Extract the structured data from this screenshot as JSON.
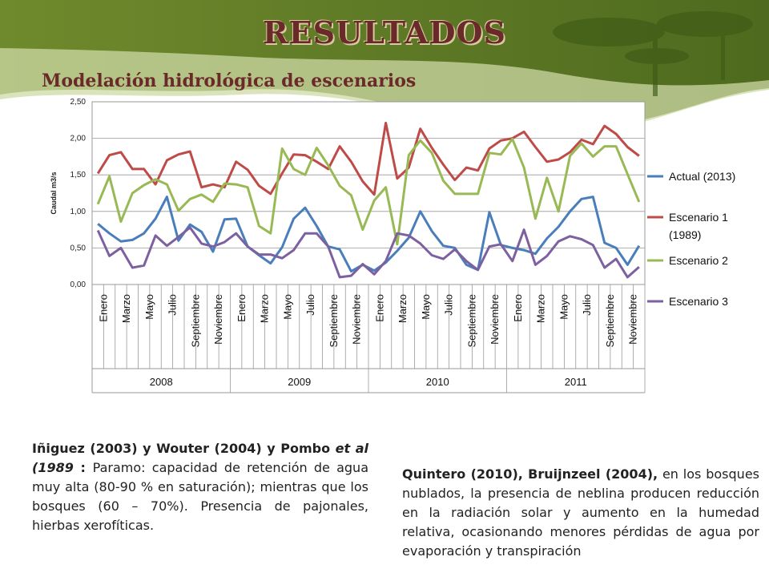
{
  "title": "RESULTADOS",
  "subtitle": "Modelación hidrológica de escenarios",
  "chart_data": {
    "type": "line",
    "ylabel": "Caudal m3/s",
    "ylim": [
      0,
      2.5
    ],
    "yticks": [
      "0,00",
      "0,50",
      "1,00",
      "1,50",
      "2,00",
      "2,50"
    ],
    "month_labels": [
      "Enero",
      "Marzo",
      "Mayo",
      "Julio",
      "Septiembre",
      "Noviembre"
    ],
    "years": [
      "2008",
      "2009",
      "2010",
      "2011"
    ],
    "legend_position": "right",
    "grid": true,
    "series": [
      {
        "name": "Actual (2013)",
        "color": "#4a7ebb",
        "values": [
          0.83,
          0.7,
          0.59,
          0.61,
          0.7,
          0.9,
          1.2,
          0.6,
          0.82,
          0.72,
          0.45,
          0.89,
          0.9,
          0.52,
          0.4,
          0.29,
          0.51,
          0.9,
          1.05,
          0.8,
          0.52,
          0.48,
          0.18,
          0.27,
          0.19,
          0.3,
          0.46,
          0.64,
          1.0,
          0.73,
          0.53,
          0.5,
          0.27,
          0.2,
          0.99,
          0.54,
          0.5,
          0.47,
          0.42,
          0.63,
          0.79,
          1.0,
          1.17,
          1.2,
          0.57,
          0.5,
          0.27,
          0.53
        ]
      },
      {
        "name": "Escenario 1 (1989)",
        "color": "#be4b48",
        "values": [
          1.52,
          1.77,
          1.81,
          1.58,
          1.58,
          1.37,
          1.7,
          1.78,
          1.82,
          1.33,
          1.37,
          1.33,
          1.68,
          1.57,
          1.35,
          1.24,
          1.52,
          1.78,
          1.77,
          1.68,
          1.58,
          1.89,
          1.68,
          1.41,
          1.23,
          2.21,
          1.45,
          1.6,
          2.13,
          1.87,
          1.64,
          1.43,
          1.6,
          1.56,
          1.86,
          1.97,
          2.0,
          2.09,
          1.88,
          1.68,
          1.71,
          1.81,
          1.98,
          1.92,
          2.17,
          2.06,
          1.88,
          1.76
        ]
      },
      {
        "name": "Escenario 2",
        "color": "#98b954",
        "values": [
          1.1,
          1.48,
          0.86,
          1.25,
          1.36,
          1.44,
          1.37,
          1.01,
          1.17,
          1.23,
          1.13,
          1.38,
          1.37,
          1.33,
          0.8,
          0.7,
          1.86,
          1.58,
          1.5,
          1.87,
          1.63,
          1.35,
          1.22,
          0.75,
          1.15,
          1.33,
          0.55,
          1.77,
          1.97,
          1.8,
          1.42,
          1.24,
          1.24,
          1.24,
          1.8,
          1.78,
          1.99,
          1.6,
          0.9,
          1.46,
          1.0,
          1.76,
          1.93,
          1.75,
          1.89,
          1.89,
          1.51,
          1.13
        ]
      },
      {
        "name": "Escenario 3",
        "color": "#7d60a0",
        "values": [
          0.74,
          0.39,
          0.5,
          0.23,
          0.26,
          0.67,
          0.53,
          0.65,
          0.78,
          0.56,
          0.52,
          0.58,
          0.7,
          0.52,
          0.41,
          0.41,
          0.36,
          0.47,
          0.7,
          0.7,
          0.52,
          0.1,
          0.12,
          0.28,
          0.14,
          0.32,
          0.7,
          0.67,
          0.56,
          0.4,
          0.35,
          0.48,
          0.32,
          0.2,
          0.52,
          0.55,
          0.32,
          0.75,
          0.27,
          0.39,
          0.59,
          0.66,
          0.62,
          0.54,
          0.23,
          0.35,
          0.1,
          0.24
        ]
      }
    ]
  },
  "left_text": {
    "b1": "Iñiguez (2003)  y Wouter (2004) y Pombo ",
    "b2": "et al",
    "b3": "(1989",
    "b4": " : ",
    "rest": "Paramo: capacidad de retención de agua muy alta (80-90 % en saturación); mientras que los bosques (60 – 70%). Presencia de pajonales, hierbas xerofíticas."
  },
  "right_text": {
    "bold": "Quintero (2010), Bruijnzeel (2004),",
    "rest": " en los bosques nublados, la presencia de neblina producen reducción en la radiación solar y aumento en la humedad relativa, ocasionando menores pérdidas de agua por evaporación y transpiración"
  }
}
